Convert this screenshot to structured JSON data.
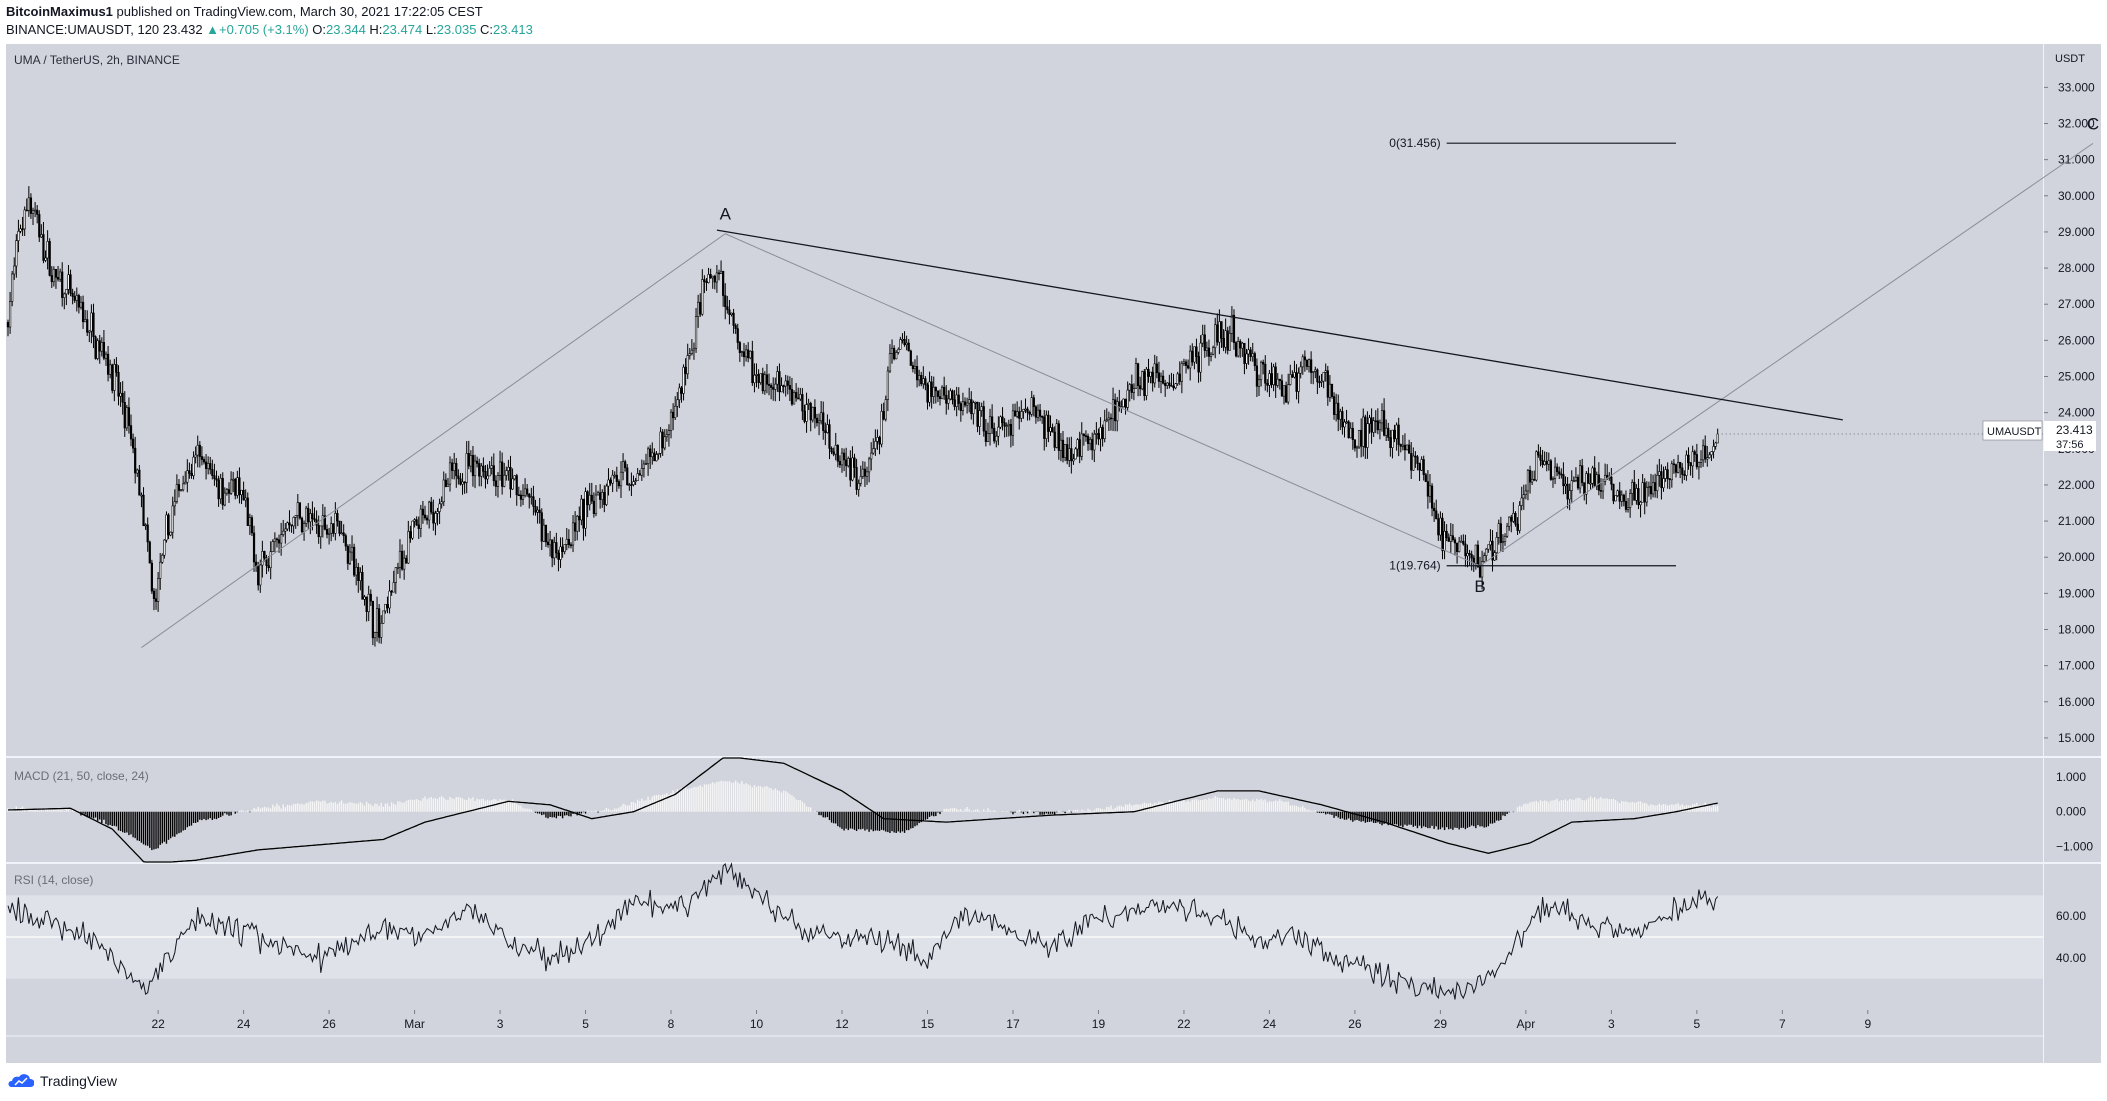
{
  "header": {
    "author": "BitcoinMaximus1",
    "published": " published on TradingView.com, March 30, 2021 17:22:05 CEST",
    "symbol": "BINANCE:UMAUSDT, 120",
    "last": "23.432",
    "change": "+0.705 (+3.1%)",
    "o_label": "O:",
    "o": "23.344",
    "h_label": "H:",
    "h": "23.474",
    "l_label": "L:",
    "l": "23.035",
    "c_label": "C:",
    "c": "23.413"
  },
  "footer": {
    "brand": "TradingView"
  },
  "colors": {
    "pane_bg": "#d1d4dc",
    "candle": "#000000",
    "up_text": "#26a69a",
    "line": "#131722"
  },
  "chart_data": {
    "type": "candlestick",
    "title": "UMA / TetherUS, 2h, BINANCE",
    "y_unit": "USDT",
    "ylim": [
      14.5,
      34.2
    ],
    "y_ticks": [
      15,
      16,
      17,
      18,
      19,
      20,
      21,
      22,
      23,
      24,
      25,
      26,
      27,
      28,
      29,
      30,
      31,
      32,
      33
    ],
    "x_ticks": [
      "22",
      "24",
      "26",
      "Mar",
      "3",
      "5",
      "8",
      "10",
      "12",
      "15",
      "17",
      "19",
      "22",
      "24",
      "26",
      "29",
      "Apr",
      "3",
      "5",
      "7",
      "9"
    ],
    "last_price": {
      "symbol": "UMAUSDT",
      "value": "23.413",
      "countdown": "37:56"
    },
    "price_path": [
      [
        0,
        26.5
      ],
      [
        4,
        28.6
      ],
      [
        10,
        30.0
      ],
      [
        20,
        28.0
      ],
      [
        34,
        26.8
      ],
      [
        48,
        25.5
      ],
      [
        58,
        23.5
      ],
      [
        64,
        21.6
      ],
      [
        70,
        18.6
      ],
      [
        76,
        20.6
      ],
      [
        84,
        22.3
      ],
      [
        92,
        22.7
      ],
      [
        102,
        22.0
      ],
      [
        112,
        21.7
      ],
      [
        120,
        19.6
      ],
      [
        128,
        20.4
      ],
      [
        138,
        21.2
      ],
      [
        148,
        20.8
      ],
      [
        158,
        21.1
      ],
      [
        168,
        19.4
      ],
      [
        178,
        17.9
      ],
      [
        186,
        19.6
      ],
      [
        194,
        20.6
      ],
      [
        204,
        21.3
      ],
      [
        212,
        22.1
      ],
      [
        222,
        22.6
      ],
      [
        232,
        22.4
      ],
      [
        242,
        22.0
      ],
      [
        252,
        21.4
      ],
      [
        262,
        20.1
      ],
      [
        270,
        20.6
      ],
      [
        280,
        21.6
      ],
      [
        290,
        22.3
      ],
      [
        300,
        22.1
      ],
      [
        308,
        22.6
      ],
      [
        316,
        23.3
      ],
      [
        322,
        24.5
      ],
      [
        328,
        25.8
      ],
      [
        334,
        27.4
      ],
      [
        340,
        27.9
      ],
      [
        346,
        26.6
      ],
      [
        352,
        25.6
      ],
      [
        360,
        25.0
      ],
      [
        370,
        24.7
      ],
      [
        380,
        24.3
      ],
      [
        390,
        23.7
      ],
      [
        400,
        22.8
      ],
      [
        410,
        22.3
      ],
      [
        418,
        23.3
      ],
      [
        424,
        25.6
      ],
      [
        430,
        25.9
      ],
      [
        436,
        25.0
      ],
      [
        444,
        24.6
      ],
      [
        452,
        24.5
      ],
      [
        460,
        24.1
      ],
      [
        470,
        23.4
      ],
      [
        480,
        23.5
      ],
      [
        490,
        24.3
      ],
      [
        500,
        23.5
      ],
      [
        510,
        23.0
      ],
      [
        520,
        23.2
      ],
      [
        530,
        24.0
      ],
      [
        540,
        24.7
      ],
      [
        550,
        25.1
      ],
      [
        558,
        24.6
      ],
      [
        566,
        25.5
      ],
      [
        576,
        25.9
      ],
      [
        586,
        26.2
      ],
      [
        594,
        25.6
      ],
      [
        602,
        25.0
      ],
      [
        612,
        24.8
      ],
      [
        622,
        25.2
      ],
      [
        630,
        25.1
      ],
      [
        638,
        24.0
      ],
      [
        646,
        23.3
      ],
      [
        654,
        23.7
      ],
      [
        664,
        23.5
      ],
      [
        672,
        22.7
      ],
      [
        680,
        22.2
      ],
      [
        686,
        20.6
      ],
      [
        692,
        20.4
      ],
      [
        700,
        20.1
      ],
      [
        706,
        19.9
      ],
      [
        712,
        20.2
      ],
      [
        720,
        20.8
      ],
      [
        728,
        21.6
      ],
      [
        734,
        22.9
      ],
      [
        740,
        22.4
      ],
      [
        748,
        22.0
      ],
      [
        756,
        22.1
      ],
      [
        766,
        22.0
      ],
      [
        774,
        21.7
      ],
      [
        782,
        21.6
      ],
      [
        790,
        21.9
      ],
      [
        798,
        22.4
      ],
      [
        806,
        22.6
      ],
      [
        814,
        23.0
      ],
      [
        820,
        23.41
      ]
    ],
    "wave_labels": [
      {
        "text": "A",
        "x": 344,
        "y": 28.95
      },
      {
        "text": "B",
        "x": 706,
        "y": 19.76
      },
      {
        "text": "C",
        "x": 1000,
        "y": 31.45
      }
    ],
    "trendline": {
      "from": [
        340,
        29.05
      ],
      "to": [
        880,
        23.8
      ]
    },
    "channel_lines": [
      {
        "from": [
          64,
          17.5
        ],
        "to": [
          344,
          28.95
        ]
      },
      {
        "from": [
          344,
          28.95
        ],
        "to": [
          706,
          19.76
        ]
      },
      {
        "from": [
          706,
          19.76
        ],
        "to": [
          1000,
          31.45
        ]
      }
    ],
    "fib": [
      {
        "label": "0(31.456)",
        "value": 31.456,
        "x_from": 690,
        "x_to": 800
      },
      {
        "label": "1(19.764)",
        "value": 19.764,
        "x_from": 690,
        "x_to": 800
      }
    ],
    "macd": {
      "title": "MACD (21, 50, close, 24)",
      "ylim": [
        -1.45,
        1.55
      ],
      "ticks": [
        -1,
        0,
        1
      ],
      "tick_labels": [
        "−1.000",
        "0.000",
        "1.000"
      ],
      "line_path": [
        [
          0,
          0.05
        ],
        [
          30,
          0.1
        ],
        [
          50,
          -0.5
        ],
        [
          66,
          -1.5
        ],
        [
          90,
          -1.4
        ],
        [
          120,
          -1.1
        ],
        [
          160,
          -0.9
        ],
        [
          180,
          -0.8
        ],
        [
          200,
          -0.3
        ],
        [
          240,
          0.3
        ],
        [
          260,
          0.2
        ],
        [
          280,
          -0.2
        ],
        [
          300,
          0.0
        ],
        [
          320,
          0.5
        ],
        [
          344,
          1.6
        ],
        [
          372,
          1.4
        ],
        [
          400,
          0.6
        ],
        [
          420,
          -0.2
        ],
        [
          450,
          -0.3
        ],
        [
          500,
          -0.1
        ],
        [
          540,
          0.0
        ],
        [
          580,
          0.6
        ],
        [
          600,
          0.6
        ],
        [
          630,
          0.2
        ],
        [
          660,
          -0.3
        ],
        [
          690,
          -0.9
        ],
        [
          710,
          -1.2
        ],
        [
          730,
          -0.9
        ],
        [
          750,
          -0.3
        ],
        [
          780,
          -0.2
        ],
        [
          800,
          0.0
        ],
        [
          820,
          0.25
        ]
      ],
      "hist_path": [
        [
          0,
          0.1
        ],
        [
          30,
          0.05
        ],
        [
          50,
          -0.4
        ],
        [
          70,
          -1.1
        ],
        [
          90,
          -0.3
        ],
        [
          120,
          0.1
        ],
        [
          150,
          0.3
        ],
        [
          180,
          0.2
        ],
        [
          200,
          0.4
        ],
        [
          240,
          0.35
        ],
        [
          260,
          -0.2
        ],
        [
          290,
          0.1
        ],
        [
          320,
          0.6
        ],
        [
          344,
          0.9
        ],
        [
          372,
          0.6
        ],
        [
          400,
          -0.5
        ],
        [
          430,
          -0.6
        ],
        [
          450,
          0.1
        ],
        [
          500,
          -0.05
        ],
        [
          540,
          0.2
        ],
        [
          580,
          0.4
        ],
        [
          610,
          0.3
        ],
        [
          640,
          -0.2
        ],
        [
          660,
          -0.35
        ],
        [
          690,
          -0.5
        ],
        [
          710,
          -0.4
        ],
        [
          730,
          0.3
        ],
        [
          760,
          0.4
        ],
        [
          790,
          0.2
        ],
        [
          820,
          0.2
        ]
      ]
    },
    "rsi": {
      "title": "RSI (14, close)",
      "ylim": [
        15,
        85
      ],
      "ticks": [
        40,
        60
      ],
      "tick_labels": [
        "40.00",
        "60.00"
      ],
      "band_upper": 70,
      "band_lower": 30,
      "midline": 50,
      "line_path": [
        [
          0,
          62
        ],
        [
          20,
          58
        ],
        [
          40,
          50
        ],
        [
          66,
          25
        ],
        [
          90,
          60
        ],
        [
          120,
          50
        ],
        [
          150,
          40
        ],
        [
          180,
          55
        ],
        [
          200,
          50
        ],
        [
          220,
          64
        ],
        [
          240,
          48
        ],
        [
          260,
          40
        ],
        [
          280,
          48
        ],
        [
          300,
          66
        ],
        [
          320,
          62
        ],
        [
          344,
          82
        ],
        [
          360,
          70
        ],
        [
          380,
          54
        ],
        [
          400,
          50
        ],
        [
          420,
          48
        ],
        [
          440,
          40
        ],
        [
          460,
          62
        ],
        [
          480,
          55
        ],
        [
          500,
          45
        ],
        [
          520,
          58
        ],
        [
          540,
          63
        ],
        [
          560,
          66
        ],
        [
          580,
          60
        ],
        [
          600,
          48
        ],
        [
          620,
          50
        ],
        [
          640,
          38
        ],
        [
          660,
          32
        ],
        [
          680,
          25
        ],
        [
          700,
          23
        ],
        [
          720,
          40
        ],
        [
          736,
          66
        ],
        [
          760,
          55
        ],
        [
          780,
          52
        ],
        [
          800,
          63
        ],
        [
          810,
          70
        ],
        [
          820,
          64
        ]
      ]
    }
  }
}
